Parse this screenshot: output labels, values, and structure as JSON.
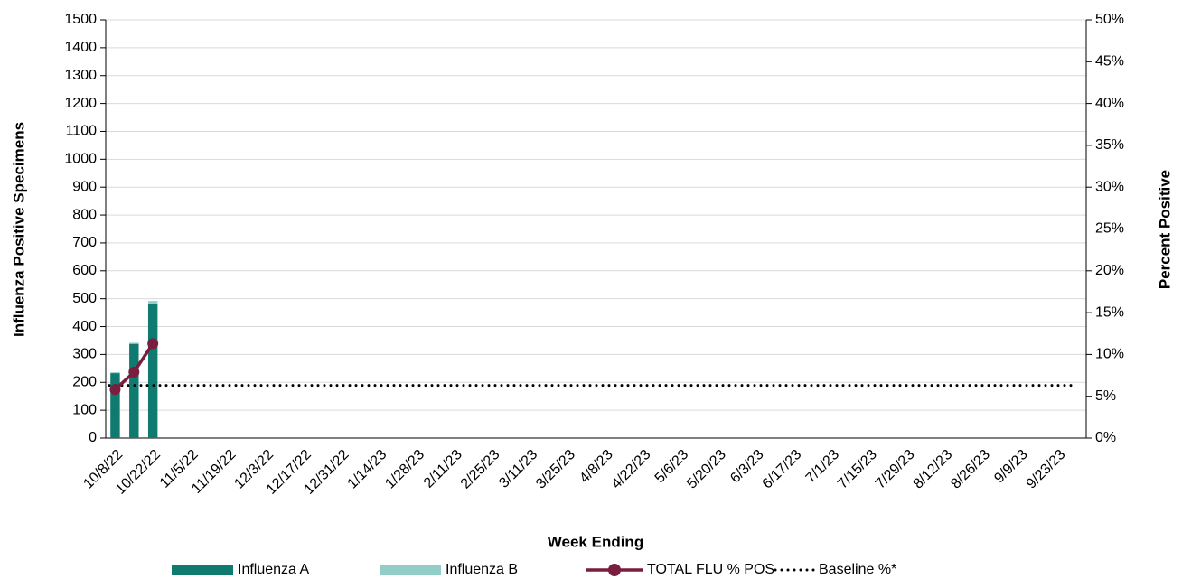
{
  "chart_data": {
    "type": "bar-line",
    "x_label": "Week Ending",
    "y_label": "Influenza Positive Specimens",
    "y2_label": "Percent Positive",
    "categories": [
      "10/8/22",
      null,
      "10/22/22",
      null,
      "11/5/22",
      null,
      "11/19/22",
      null,
      "12/3/22",
      null,
      "12/17/22",
      null,
      "12/31/22",
      null,
      "1/14/23",
      null,
      "1/28/23",
      null,
      "2/11/23",
      null,
      "2/25/23",
      null,
      "3/11/23",
      null,
      "3/25/23",
      null,
      "4/8/23",
      null,
      "4/22/23",
      null,
      "5/6/23",
      null,
      "5/20/23",
      null,
      "6/3/23",
      null,
      "6/17/23",
      null,
      "7/1/23",
      null,
      "7/15/23",
      null,
      "7/29/23",
      null,
      "8/12/23",
      null,
      "8/26/23",
      null,
      "9/9/23",
      null,
      "9/23/23",
      null
    ],
    "series": [
      {
        "name": "Influenza A",
        "type": "bar",
        "color": "#0f7a6f",
        "values": [
          233,
          338,
          483,
          null,
          null,
          null,
          null,
          null,
          null,
          null,
          null,
          null,
          null,
          null,
          null,
          null,
          null,
          null,
          null,
          null,
          null,
          null,
          null,
          null,
          null,
          null,
          null,
          null,
          null,
          null,
          null,
          null,
          null,
          null,
          null,
          null,
          null,
          null,
          null,
          null,
          null,
          null,
          null,
          null,
          null,
          null,
          null,
          null,
          null,
          null,
          null,
          null
        ]
      },
      {
        "name": "Influenza B",
        "type": "bar",
        "color": "#93cdc8",
        "values": [
          3,
          4,
          9,
          null,
          null,
          null,
          null,
          null,
          null,
          null,
          null,
          null,
          null,
          null,
          null,
          null,
          null,
          null,
          null,
          null,
          null,
          null,
          null,
          null,
          null,
          null,
          null,
          null,
          null,
          null,
          null,
          null,
          null,
          null,
          null,
          null,
          null,
          null,
          null,
          null,
          null,
          null,
          null,
          null,
          null,
          null,
          null,
          null,
          null,
          null,
          null,
          null
        ]
      },
      {
        "name": "TOTAL FLU % POS",
        "type": "line",
        "axis": "y2",
        "color": "#7a1d3e",
        "values": [
          5.8,
          7.9,
          11.3,
          null,
          null,
          null,
          null,
          null,
          null,
          null,
          null,
          null,
          null,
          null,
          null,
          null,
          null,
          null,
          null,
          null,
          null,
          null,
          null,
          null,
          null,
          null,
          null,
          null,
          null,
          null,
          null,
          null,
          null,
          null,
          null,
          null,
          null,
          null,
          null,
          null,
          null,
          null,
          null,
          null,
          null,
          null,
          null,
          null,
          null,
          null,
          null,
          null
        ]
      }
    ],
    "baseline": {
      "name": "Baseline %*",
      "value": 6.3,
      "color": "#000000"
    },
    "ylim": [
      0,
      1500
    ],
    "yticks": [
      0,
      100,
      200,
      300,
      400,
      500,
      600,
      700,
      800,
      900,
      1000,
      1100,
      1200,
      1300,
      1400,
      1500
    ],
    "y2lim": [
      0,
      50
    ],
    "y2ticks": [
      {
        "value": 0,
        "label": "0%"
      },
      {
        "value": 5,
        "label": "5%"
      },
      {
        "value": 10,
        "label": "10%"
      },
      {
        "value": 15,
        "label": "15%"
      },
      {
        "value": 20,
        "label": "20%"
      },
      {
        "value": 25,
        "label": "25%"
      },
      {
        "value": 30,
        "label": "30%"
      },
      {
        "value": 35,
        "label": "35%"
      },
      {
        "value": 40,
        "label": "40%"
      },
      {
        "value": 45,
        "label": "45%"
      },
      {
        "value": 50,
        "label": "50%"
      }
    ],
    "grid": true,
    "legend": "bottom"
  }
}
